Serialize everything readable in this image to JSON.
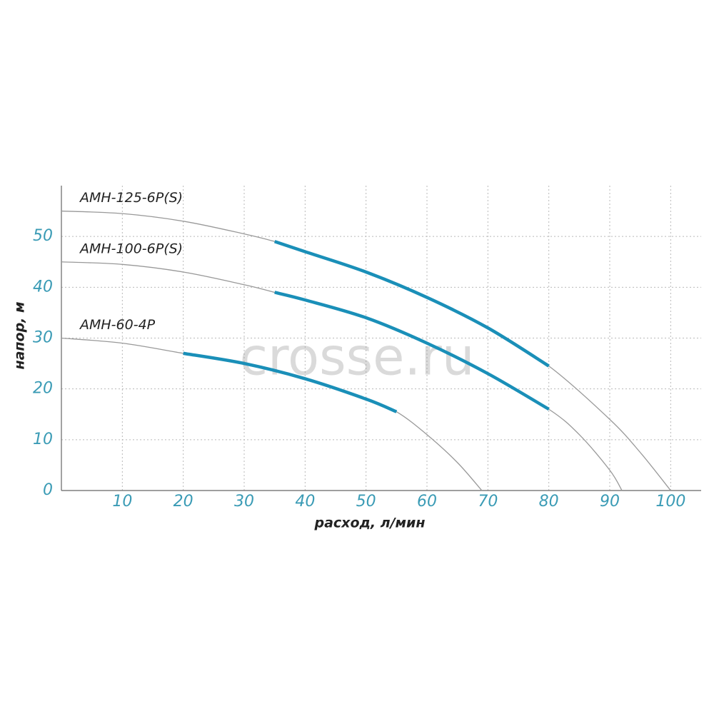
{
  "chart_data": {
    "type": "line",
    "x_label": "расход, л/мин",
    "y_label": "напор, м",
    "watermark": "crosse.ru",
    "xlim": [
      0,
      105
    ],
    "ylim": [
      0,
      60
    ],
    "xticks": [
      10,
      20,
      30,
      40,
      50,
      60,
      70,
      80,
      90,
      100
    ],
    "yticks": [
      0,
      10,
      20,
      30,
      40,
      50
    ],
    "grid": true,
    "operating_color": "#1a8fb8",
    "series": [
      {
        "name": "АМН-125-6Р(S)",
        "color": "#999999",
        "x": [
          0,
          10,
          20,
          30,
          35,
          40,
          50,
          60,
          70,
          80,
          90,
          95,
          100
        ],
        "values": [
          55,
          54.5,
          53,
          50.5,
          49,
          47,
          43,
          38,
          32,
          24.5,
          14,
          7.5,
          0
        ],
        "operating_x": [
          35,
          80
        ]
      },
      {
        "name": "АМН-100-6Р(S)",
        "color": "#999999",
        "x": [
          0,
          10,
          20,
          30,
          35,
          40,
          50,
          60,
          70,
          80,
          85,
          90,
          92
        ],
        "values": [
          45,
          44.5,
          43,
          40.5,
          39,
          37.5,
          34,
          29,
          23,
          16,
          11,
          4,
          0
        ],
        "operating_x": [
          35,
          80
        ]
      },
      {
        "name": "АМН-60-4Р",
        "color": "#999999",
        "x": [
          0,
          10,
          20,
          30,
          40,
          50,
          55,
          60,
          65,
          69
        ],
        "values": [
          30,
          29,
          27,
          25,
          22,
          18,
          15.5,
          11,
          5.5,
          0
        ],
        "operating_x": [
          20,
          55
        ]
      }
    ]
  }
}
